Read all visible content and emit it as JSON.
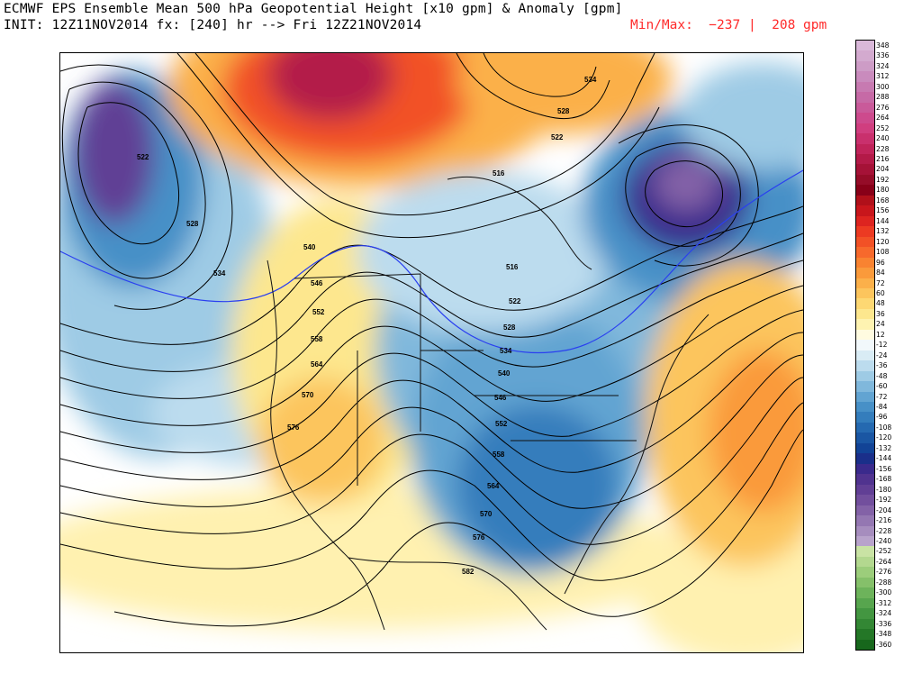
{
  "header": {
    "title_line1": "ECMWF EPS Ensemble Mean 500 hPa Geopotential Height [x10 gpm] & Anomaly [gpm]",
    "title_line2": "INIT: 12Z11NOV2014 fx: [240] hr --> Fri 12Z21NOV2014",
    "minmax": "Min/Max:  −237 |  208 gpm"
  },
  "map": {
    "contour_labels": [
      {
        "text": "522"
      },
      {
        "text": "528"
      },
      {
        "text": "534"
      },
      {
        "text": "540"
      },
      {
        "text": "546"
      },
      {
        "text": "552"
      },
      {
        "text": "558"
      },
      {
        "text": "564"
      },
      {
        "text": "570"
      },
      {
        "text": "576"
      },
      {
        "text": "516"
      },
      {
        "text": "522"
      },
      {
        "text": "528"
      },
      {
        "text": "534"
      },
      {
        "text": "540"
      },
      {
        "text": "546"
      },
      {
        "text": "552"
      },
      {
        "text": "558"
      },
      {
        "text": "564"
      },
      {
        "text": "570"
      },
      {
        "text": "576"
      },
      {
        "text": "582"
      },
      {
        "text": "534"
      },
      {
        "text": "528"
      },
      {
        "text": "522"
      },
      {
        "text": "516"
      }
    ]
  },
  "colorbar": {
    "labels": [
      "348",
      "336",
      "324",
      "312",
      "300",
      "288",
      "276",
      "264",
      "252",
      "240",
      "228",
      "216",
      "204",
      "192",
      "180",
      "168",
      "156",
      "144",
      "132",
      "120",
      "108",
      "96",
      "84",
      "72",
      "60",
      "48",
      "36",
      "24",
      "12",
      "-12",
      "-24",
      "-36",
      "-48",
      "-60",
      "-72",
      "-84",
      "-96",
      "-108",
      "-120",
      "-132",
      "-144",
      "-156",
      "-168",
      "-180",
      "-192",
      "-204",
      "-216",
      "-228",
      "-240",
      "-252",
      "-264",
      "-276",
      "-288",
      "-300",
      "-312",
      "-324",
      "-336",
      "-348",
      "-360"
    ],
    "colors": [
      "#d9b8d9",
      "#d3aacf",
      "#cd9cc6",
      "#c98bbd",
      "#c77ab1",
      "#c66aa6",
      "#c95a9a",
      "#cd4a8d",
      "#d03e7f",
      "#c9306d",
      "#c0245a",
      "#b31a48",
      "#a51237",
      "#950c28",
      "#880018",
      "#b0101a",
      "#c8161c",
      "#dd2420",
      "#ec3a22",
      "#f25126",
      "#f7692c",
      "#f98331",
      "#fa9a3b",
      "#fbb04a",
      "#fcc55d",
      "#fdd873",
      "#fde78e",
      "#fef3b1",
      "#fffbe0",
      "#f2f8fb",
      "#d9ecf5",
      "#bcdcee",
      "#9ecbe5",
      "#80b8dc",
      "#62a4d2",
      "#4790c7",
      "#347dbc",
      "#2569b0",
      "#1a56a3",
      "#124396",
      "#1a2f8a",
      "#3a2a8c",
      "#50338f",
      "#613f95",
      "#724f9d",
      "#8362a7",
      "#9477b2",
      "#a68dbe",
      "#b8a3cb",
      "#c9e3a4",
      "#b3d88f",
      "#9ccd7b",
      "#85c06a",
      "#6db35b",
      "#57a54e",
      "#439641",
      "#338734",
      "#247727",
      "#17671c"
    ]
  }
}
